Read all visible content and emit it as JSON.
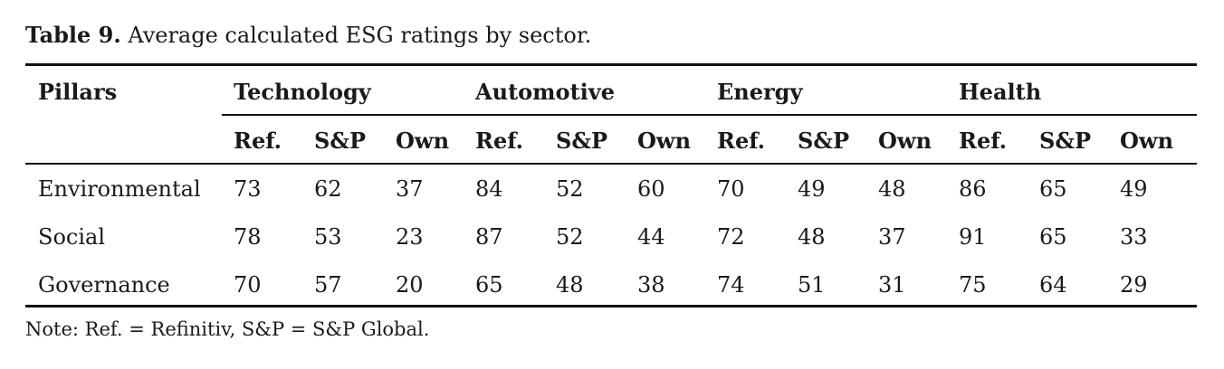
{
  "caption": {
    "label": "Table 9.",
    "text": " Average calculated ESG ratings by sector."
  },
  "table": {
    "row_header": "Pillars",
    "sectors": [
      "Technology",
      "Automotive",
      "Energy",
      "Health"
    ],
    "subcolumns": [
      "Ref.",
      "S&P",
      "Own"
    ],
    "rows": [
      {
        "pillar": "Environmental",
        "values": [
          "73",
          "62",
          "37",
          "84",
          "52",
          "60",
          "70",
          "49",
          "48",
          "86",
          "65",
          "49"
        ]
      },
      {
        "pillar": "Social",
        "values": [
          "78",
          "53",
          "23",
          "87",
          "52",
          "44",
          "72",
          "48",
          "37",
          "91",
          "65",
          "33"
        ]
      },
      {
        "pillar": "Governance",
        "values": [
          "70",
          "57",
          "20",
          "65",
          "48",
          "38",
          "74",
          "51",
          "31",
          "75",
          "64",
          "29"
        ]
      }
    ]
  },
  "note": "Note: Ref. = Refinitiv, S&P = S&P Global."
}
